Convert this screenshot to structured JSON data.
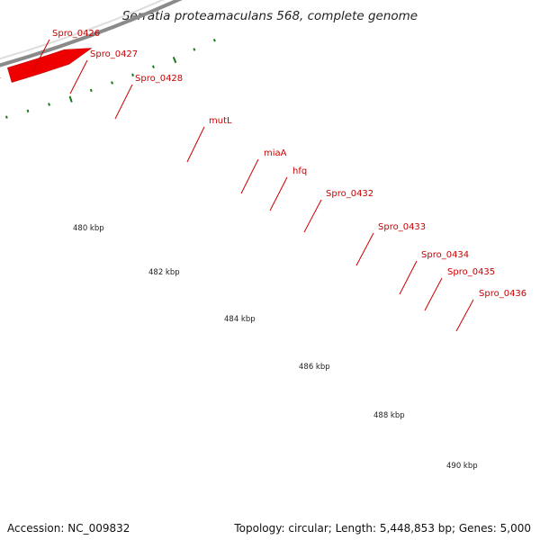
{
  "title": "Serratia proteamaculans 568, complete genome",
  "footer": {
    "accession": "Accession: NC_009832",
    "summary": "Topology: circular; Length: 5,448,853 bp; Genes: 5,000"
  },
  "colors": {
    "backbone": "#8a8a8a",
    "orf": "#ee0000",
    "tick": "#1a7a1a",
    "label": "#cc0000"
  },
  "scale_labels": [
    "480 kbp",
    "482 kbp",
    "484 kbp",
    "486 kbp",
    "488 kbp",
    "490 kbp"
  ],
  "genes": [
    {
      "name": "Spro_0426",
      "color": "#1fd0d8"
    },
    {
      "name": "",
      "color": "#c8c8c8"
    },
    {
      "name": "Spro_0427",
      "color": "#6b8e23"
    },
    {
      "name": "Spro_0428",
      "color": "#ff1493"
    },
    {
      "name": "mutL",
      "color": "#f08080"
    },
    {
      "name": "miaA",
      "color": "#cccccc"
    },
    {
      "name": "hfq",
      "color": "#cccccc"
    },
    {
      "name": "Spro_0432",
      "color": "#bdb76b"
    },
    {
      "name": "Spro_0433",
      "color": "#555555"
    },
    {
      "name": "Spro_0434",
      "color": "#2ab4ea"
    },
    {
      "name": "Spro_0435",
      "color": "#ff8c00"
    },
    {
      "name": "Spro_0436",
      "color": "#ff8c00"
    }
  ]
}
